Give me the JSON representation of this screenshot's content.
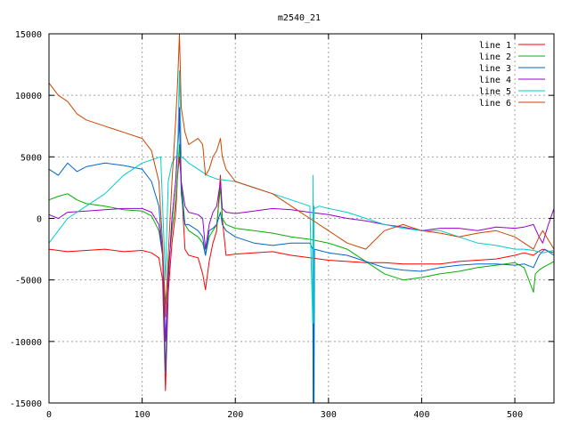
{
  "chart_data": {
    "type": "line",
    "title": "m2540_21",
    "xlabel": "",
    "ylabel": "",
    "xlim": [
      0,
      542
    ],
    "ylim": [
      -15000,
      15000
    ],
    "xticks": [
      0,
      100,
      200,
      300,
      400,
      500
    ],
    "yticks": [
      -15000,
      -10000,
      -5000,
      0,
      5000,
      10000,
      15000
    ],
    "grid": true,
    "legend_position": "top-right",
    "series": [
      {
        "name": "line 1",
        "color": "#ff0000",
        "x": [
          0,
          20,
          40,
          60,
          80,
          100,
          110,
          118,
          122,
          125,
          128,
          132,
          136,
          138,
          140,
          142,
          146,
          150,
          160,
          165,
          168,
          172,
          176,
          180,
          184,
          186,
          190,
          200,
          220,
          240,
          260,
          280,
          290,
          300,
          320,
          340,
          360,
          380,
          400,
          420,
          440,
          460,
          480,
          500,
          510,
          520,
          525,
          530,
          542
        ],
        "y": [
          -2500,
          -2700,
          -2600,
          -2500,
          -2700,
          -2600,
          -2800,
          -3200,
          -5000,
          -14000,
          -6000,
          -2000,
          500,
          3500,
          5000,
          3000,
          -2500,
          -3000,
          -3200,
          -4500,
          -5800,
          -3500,
          -2000,
          -1000,
          3500,
          0,
          -3000,
          -2900,
          -2800,
          -2700,
          -3000,
          -3200,
          -3300,
          -3400,
          -3500,
          -3600,
          -3600,
          -3700,
          -3700,
          -3700,
          -3500,
          -3400,
          -3300,
          -3000,
          -2800,
          -3000,
          -2700,
          -2500,
          -2800
        ]
      },
      {
        "name": "line 2",
        "color": "#00b000",
        "x": [
          0,
          10,
          20,
          30,
          40,
          60,
          80,
          100,
          110,
          118,
          122,
          125,
          128,
          132,
          136,
          138,
          140,
          142,
          146,
          150,
          160,
          165,
          168,
          172,
          176,
          180,
          184,
          186,
          190,
          200,
          220,
          240,
          260,
          280,
          300,
          320,
          340,
          360,
          380,
          400,
          420,
          440,
          460,
          480,
          500,
          510,
          520,
          522,
          526,
          530,
          542
        ],
        "y": [
          1500,
          1800,
          2000,
          1500,
          1200,
          1000,
          700,
          600,
          200,
          -1000,
          -3000,
          -7000,
          -4000,
          -1000,
          1500,
          3500,
          6000,
          3000,
          -500,
          -1000,
          -1500,
          -2000,
          -3000,
          -1500,
          -1000,
          -500,
          2500,
          0,
          -500,
          -800,
          -1000,
          -1200,
          -1500,
          -1700,
          -2000,
          -2500,
          -3500,
          -4500,
          -5000,
          -4800,
          -4500,
          -4300,
          -4000,
          -3800,
          -3600,
          -4000,
          -6000,
          -4500,
          -4200,
          -4000,
          -3500
        ]
      },
      {
        "name": "line 3",
        "color": "#0066cc",
        "x": [
          0,
          10,
          20,
          30,
          40,
          60,
          80,
          100,
          110,
          118,
          122,
          125,
          128,
          132,
          136,
          138,
          140,
          142,
          146,
          150,
          160,
          165,
          168,
          172,
          176,
          180,
          184,
          186,
          190,
          200,
          220,
          240,
          260,
          280,
          283,
          283.5,
          284,
          284.5,
          285,
          290,
          300,
          320,
          340,
          360,
          380,
          400,
          420,
          440,
          460,
          480,
          500,
          510,
          520,
          526,
          532,
          542
        ],
        "y": [
          4000,
          3500,
          4500,
          3800,
          4200,
          4500,
          4300,
          4000,
          3000,
          1000,
          -3000,
          -12500,
          -5000,
          0,
          3000,
          5500,
          8000,
          2000,
          -500,
          -500,
          -1000,
          -1500,
          -3000,
          -1000,
          -800,
          -500,
          500,
          -500,
          -1000,
          -1500,
          -2000,
          -2200,
          -2000,
          -2000,
          -2500,
          -15000,
          -2500,
          -15000,
          -2500,
          -2600,
          -2800,
          -3000,
          -3500,
          -4000,
          -4200,
          -4300,
          -4000,
          -3800,
          -3700,
          -3700,
          -3800,
          -3700,
          -4000,
          -3000,
          -2500,
          -3000
        ]
      },
      {
        "name": "line 4",
        "color": "#9900cc",
        "x": [
          0,
          10,
          20,
          40,
          60,
          80,
          100,
          110,
          118,
          122,
          125,
          128,
          132,
          136,
          138,
          140,
          142,
          146,
          150,
          160,
          165,
          168,
          172,
          176,
          180,
          184,
          186,
          190,
          200,
          220,
          240,
          260,
          280,
          300,
          320,
          340,
          360,
          380,
          400,
          420,
          440,
          460,
          480,
          500,
          510,
          520,
          526,
          530,
          536,
          542
        ],
        "y": [
          300,
          0,
          500,
          600,
          700,
          800,
          800,
          500,
          -500,
          -3000,
          -10000,
          -5000,
          0,
          3000,
          6000,
          9000,
          3000,
          1000,
          500,
          300,
          0,
          -2500,
          -500,
          500,
          1000,
          3000,
          800,
          500,
          400,
          600,
          800,
          700,
          500,
          300,
          0,
          -200,
          -500,
          -700,
          -1000,
          -800,
          -800,
          -1000,
          -700,
          -800,
          -700,
          -500,
          -1500,
          -2000,
          -500,
          800
        ]
      },
      {
        "name": "line 5",
        "color": "#00cccc",
        "x": [
          0,
          10,
          20,
          40,
          60,
          80,
          100,
          120,
          125,
          128,
          132,
          136,
          138,
          140,
          142,
          146,
          150,
          160,
          170,
          180,
          200,
          220,
          240,
          260,
          280,
          283,
          283.5,
          284,
          284.5,
          285,
          290,
          300,
          320,
          340,
          360,
          380,
          400,
          420,
          440,
          460,
          480,
          500,
          510,
          520,
          530,
          542
        ],
        "y": [
          -2000,
          -1000,
          0,
          1000,
          2000,
          3500,
          4500,
          5000,
          -5000,
          3000,
          4500,
          5000,
          5200,
          12000,
          5000,
          4800,
          4500,
          4000,
          3500,
          3200,
          3000,
          2500,
          2000,
          1500,
          1000,
          -8500,
          3500,
          -8500,
          1000,
          800,
          1000,
          800,
          500,
          0,
          -500,
          -800,
          -1000,
          -1000,
          -1500,
          -2000,
          -2200,
          -2500,
          -2500,
          -2600,
          -2800,
          -2600
        ]
      },
      {
        "name": "line 6",
        "color": "#cc4400",
        "x": [
          0,
          10,
          20,
          30,
          40,
          60,
          80,
          100,
          110,
          118,
          122,
          125,
          128,
          132,
          136,
          138,
          140,
          142,
          146,
          150,
          160,
          165,
          168,
          172,
          176,
          180,
          184,
          186,
          190,
          200,
          220,
          240,
          260,
          280,
          300,
          320,
          340,
          360,
          380,
          400,
          420,
          440,
          460,
          480,
          500,
          510,
          520,
          526,
          530,
          542
        ],
        "y": [
          11000,
          10000,
          9500,
          8500,
          8000,
          7500,
          7000,
          6500,
          5500,
          3000,
          -2000,
          -8000,
          -3000,
          3000,
          8000,
          11000,
          15000,
          9000,
          7000,
          6000,
          6500,
          6000,
          3500,
          4000,
          5000,
          5500,
          6500,
          5000,
          4000,
          3000,
          2500,
          2000,
          1000,
          0,
          -1000,
          -2000,
          -2500,
          -1000,
          -500,
          -1000,
          -1200,
          -1500,
          -1200,
          -1000,
          -1500,
          -2000,
          -2500,
          -1500,
          -1000,
          -2500
        ]
      }
    ]
  }
}
